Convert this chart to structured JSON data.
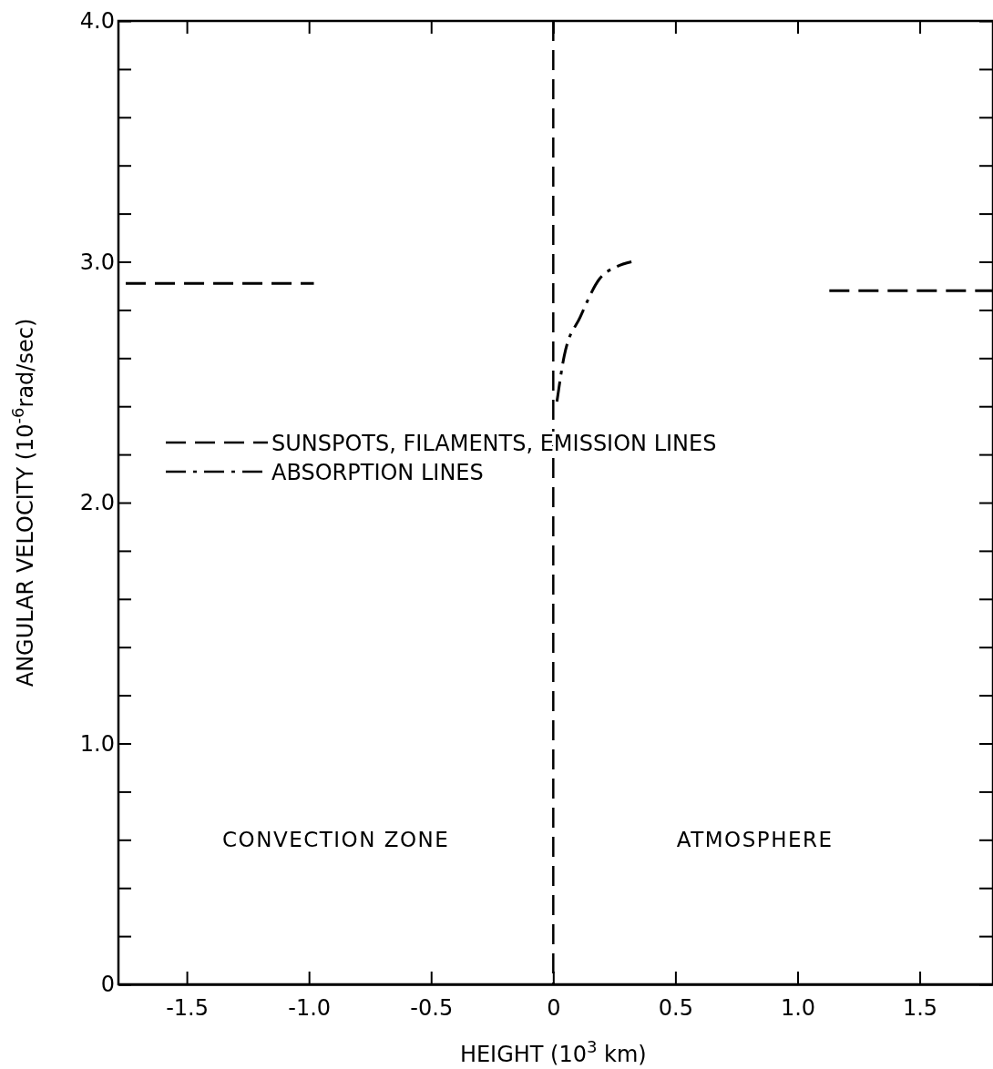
{
  "chart_data": {
    "type": "line",
    "xlabel": "HEIGHT (10$^{3}$ km)",
    "ylabel": "ANGULAR VELOCITY (10$^{-6}$rad/sec)",
    "xlim": [
      -1.78,
      1.8
    ],
    "ylim": [
      0,
      4.0
    ],
    "xticks": [
      {
        "value": -1.5,
        "label": "-1.5"
      },
      {
        "value": -1.0,
        "label": "-1.0"
      },
      {
        "value": -0.5,
        "label": "-0.5"
      },
      0,
      {
        "value": 0.5,
        "label": "0.5"
      },
      {
        "value": 1.0,
        "label": "1.0"
      },
      {
        "value": 1.5,
        "label": "1.5"
      }
    ],
    "yticks": [
      0,
      {
        "value": 0.2,
        "label": null
      },
      {
        "value": 0.4,
        "label": null
      },
      {
        "value": 0.6,
        "label": null
      },
      {
        "value": 0.8,
        "label": null
      },
      {
        "value": 1.0,
        "label": "1.0"
      },
      {
        "value": 1.2,
        "label": null
      },
      {
        "value": 1.4,
        "label": null
      },
      {
        "value": 1.6,
        "label": null
      },
      {
        "value": 1.8,
        "label": null
      },
      {
        "value": 2.0,
        "label": "2.0"
      },
      {
        "value": 2.2,
        "label": null
      },
      {
        "value": 2.4,
        "label": null
      },
      {
        "value": 2.6,
        "label": null
      },
      {
        "value": 2.8,
        "label": null
      },
      {
        "value": 3.0,
        "label": "3.0"
      },
      {
        "value": 3.2,
        "label": null
      },
      {
        "value": 3.4,
        "label": null
      },
      {
        "value": 3.6,
        "label": null
      },
      {
        "value": 3.8,
        "label": null
      },
      {
        "value": 4.0,
        "label": "4.0"
      }
    ],
    "series": [
      {
        "name": "SUNSPOTS, FILAMENTS, EMISSION LINES",
        "color": "#000000",
        "line_style": "dashed",
        "x": [
          -1.75,
          -0.98,
          0,
          1.13,
          1.8
        ],
        "values": [
          2.91,
          2.91,
          null,
          2.88,
          2.88
        ]
      },
      {
        "name": "ABSORPTION LINES",
        "color": "#000000",
        "line_style": "dashdot",
        "x": [
          0.015,
          0.045,
          0.11,
          0.19,
          0.26,
          0.32
        ],
        "values": [
          2.42,
          2.61,
          2.77,
          2.93,
          2.98,
          3.0
        ]
      }
    ],
    "ref_lines": [
      {
        "axis": "x",
        "value": 0,
        "line_style": "dashed",
        "color": "#000000"
      }
    ],
    "annotations": [
      "CONVECTION ZONE",
      "ATMOSPHERE"
    ],
    "legend": "left",
    "grid": false,
    "marker": "none"
  }
}
